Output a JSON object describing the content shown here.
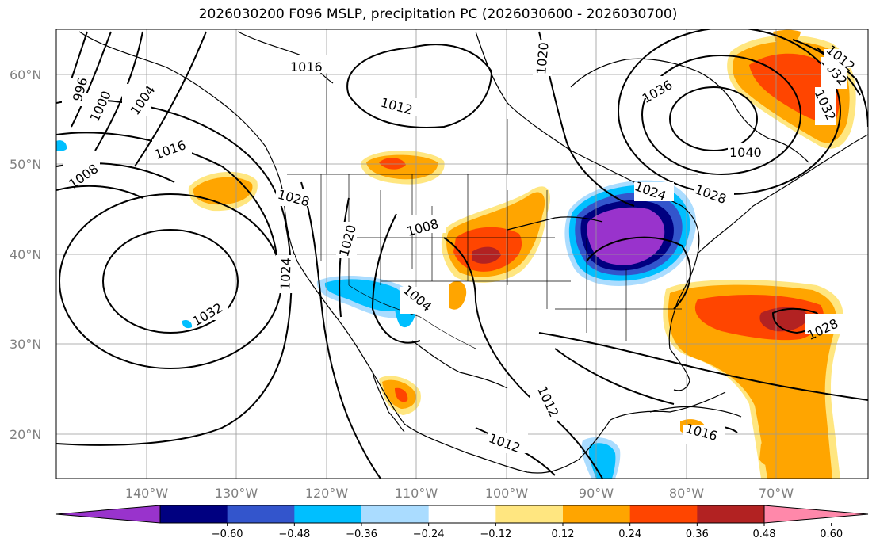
{
  "title": "2026030200 F096 MSLP, precipitation PC (2026030600 - 2026030700)",
  "lat_labels": [
    "60°N",
    "50°N",
    "40°N",
    "30°N",
    "20°N"
  ],
  "lon_labels": [
    "140°W",
    "130°W",
    "120°W",
    "110°W",
    "100°W",
    "90°W",
    "80°W",
    "70°W"
  ],
  "contour_labels": [
    "996",
    "1000",
    "1004",
    "1008",
    "1016",
    "1028",
    "1032",
    "1024",
    "1020",
    "1016",
    "1012",
    "1008",
    "1004",
    "1020",
    "1036",
    "1040",
    "1028",
    "1024",
    "1032",
    "1032",
    "1012",
    "1028",
    "1012",
    "1016",
    "1012"
  ],
  "colorbar": {
    "ticks": [
      "−0.60",
      "−0.48",
      "−0.36",
      "−0.24",
      "−0.12",
      "0.12",
      "0.24",
      "0.36",
      "0.48",
      "0.60"
    ],
    "colors": [
      "#9933cc",
      "#000080",
      "#3355cc",
      "#00bfff",
      "#aadcff",
      "#ffffff",
      "#ffe680",
      "#ffa500",
      "#ff4500",
      "#b22222",
      "#ff88aa"
    ]
  }
}
